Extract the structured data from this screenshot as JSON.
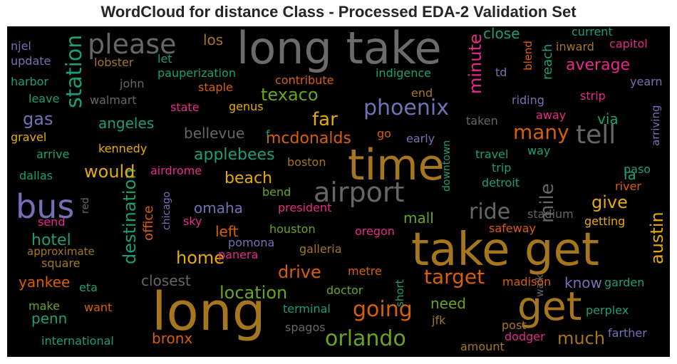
{
  "chart_data": {
    "type": "wordcloud",
    "title": "WordCloud for distance Class - Processed EDA-2 Validation Set",
    "background": "#000000",
    "words": [
      {
        "text": "long take",
        "color": "#6b6b6b"
      },
      {
        "text": "time",
        "color": "#a6761d"
      },
      {
        "text": "take get",
        "color": "#a6761d"
      },
      {
        "text": "long",
        "color": "#a6761d"
      },
      {
        "text": "get",
        "color": "#a6761d"
      },
      {
        "text": "bus",
        "color": "#7570b3"
      },
      {
        "text": "airport",
        "color": "#666666"
      },
      {
        "text": "station",
        "color": "#1b9e77"
      },
      {
        "text": "please",
        "color": "#666666"
      },
      {
        "text": "phoenix",
        "color": "#7570b3"
      },
      {
        "text": "destination",
        "color": "#1b9e77"
      },
      {
        "text": "minute",
        "color": "#e7298a"
      },
      {
        "text": "mile",
        "color": "#666666"
      },
      {
        "text": "tell",
        "color": "#666666"
      },
      {
        "text": "many",
        "color": "#d95f02"
      },
      {
        "text": "ride",
        "color": "#666666"
      },
      {
        "text": "orlando",
        "color": "#66a61e"
      },
      {
        "text": "going",
        "color": "#d95f02"
      },
      {
        "text": "target",
        "color": "#d95f02"
      },
      {
        "text": "austin",
        "color": "#e6ab02"
      },
      {
        "text": "reach",
        "color": "#1b9e77"
      },
      {
        "text": "average",
        "color": "#e7298a"
      },
      {
        "text": "far",
        "color": "#e6ab02"
      },
      {
        "text": "texaco",
        "color": "#66a61e"
      },
      {
        "text": "mcdonalds",
        "color": "#d95f02"
      },
      {
        "text": "would",
        "color": "#e6ab02"
      },
      {
        "text": "applebees",
        "color": "#1b9e77"
      },
      {
        "text": "angeles",
        "color": "#1b9e77"
      },
      {
        "text": "gas",
        "color": "#7570b3"
      },
      {
        "text": "bellevue",
        "color": "#666666"
      },
      {
        "text": "beach",
        "color": "#e6ab02"
      },
      {
        "text": "give",
        "color": "#e6ab02"
      },
      {
        "text": "home",
        "color": "#e6ab02"
      },
      {
        "text": "drive",
        "color": "#d95f02"
      },
      {
        "text": "location",
        "color": "#66a61e"
      },
      {
        "text": "much",
        "color": "#a6761d"
      },
      {
        "text": "hotel",
        "color": "#1b9e77"
      },
      {
        "text": "office",
        "color": "#d95f02"
      },
      {
        "text": "omaha",
        "color": "#7570b3"
      },
      {
        "text": "left",
        "color": "#d95f02"
      },
      {
        "text": "mall",
        "color": "#66a61e"
      },
      {
        "text": "closest",
        "color": "#666666"
      },
      {
        "text": "need",
        "color": "#66a61e"
      },
      {
        "text": "yankee",
        "color": "#d95f02"
      },
      {
        "text": "penn",
        "color": "#1b9e77"
      },
      {
        "text": "bronx",
        "color": "#d95f02"
      },
      {
        "text": "know",
        "color": "#7570b3"
      },
      {
        "text": "los",
        "color": "#a6761d"
      },
      {
        "text": "close",
        "color": "#1b9e77"
      },
      {
        "text": "via",
        "color": "#1b9e77"
      },
      {
        "text": "la",
        "color": "#1b9e77"
      },
      {
        "text": "current",
        "color": "#1b9e77"
      },
      {
        "text": "capitol",
        "color": "#e7298a"
      },
      {
        "text": "inward",
        "color": "#a6761d"
      },
      {
        "text": "yearn",
        "color": "#7570b3"
      },
      {
        "text": "strip",
        "color": "#e7298a"
      },
      {
        "text": "riding",
        "color": "#7570b3"
      },
      {
        "text": "blend",
        "color": "#d95f02"
      },
      {
        "text": "td",
        "color": "#7570b3"
      },
      {
        "text": "away",
        "color": "#e7298a"
      },
      {
        "text": "arriving",
        "color": "#7570b3"
      },
      {
        "text": "taken",
        "color": "#666666"
      },
      {
        "text": "indigence",
        "color": "#1b9e77"
      },
      {
        "text": "contribute",
        "color": "#d95f02"
      },
      {
        "text": "end",
        "color": "#a6761d"
      },
      {
        "text": "pauperization",
        "color": "#1b9e77"
      },
      {
        "text": "staple",
        "color": "#d95f02"
      },
      {
        "text": "lobster",
        "color": "#a6761d"
      },
      {
        "text": "let",
        "color": "#1b9e77"
      },
      {
        "text": "john",
        "color": "#666666"
      },
      {
        "text": "walmart",
        "color": "#666666"
      },
      {
        "text": "state",
        "color": "#e7298a"
      },
      {
        "text": "genus",
        "color": "#e6ab02"
      },
      {
        "text": "njel",
        "color": "#7570b3"
      },
      {
        "text": "update",
        "color": "#7570b3"
      },
      {
        "text": "harbor",
        "color": "#1b9e77"
      },
      {
        "text": "leave",
        "color": "#1b9e77"
      },
      {
        "text": "gravel",
        "color": "#e6ab02"
      },
      {
        "text": "arrive",
        "color": "#1b9e77"
      },
      {
        "text": "kennedy",
        "color": "#e6ab02"
      },
      {
        "text": "dallas",
        "color": "#1b9e77"
      },
      {
        "text": "f",
        "color": "#1b9e77"
      },
      {
        "text": "go",
        "color": "#d95f02"
      },
      {
        "text": "early",
        "color": "#7570b3"
      },
      {
        "text": "boston",
        "color": "#a6761d"
      },
      {
        "text": "downtown",
        "color": "#1b9e77"
      },
      {
        "text": "travel",
        "color": "#1b9e77"
      },
      {
        "text": "way",
        "color": "#1b9e77"
      },
      {
        "text": "trip",
        "color": "#1b9e77"
      },
      {
        "text": "paso",
        "color": "#1b9e77"
      },
      {
        "text": "detroit",
        "color": "#1b9e77"
      },
      {
        "text": "river",
        "color": "#d95f02"
      },
      {
        "text": "airdrome",
        "color": "#e7298a"
      },
      {
        "text": "red",
        "color": "#666666"
      },
      {
        "text": "chicago",
        "color": "#7570b3"
      },
      {
        "text": "bend",
        "color": "#66a61e"
      },
      {
        "text": "president",
        "color": "#e7298a"
      },
      {
        "text": "stadium",
        "color": "#666666"
      },
      {
        "text": "send",
        "color": "#e7298a"
      },
      {
        "text": "sky",
        "color": "#e7298a"
      },
      {
        "text": "houston",
        "color": "#66a61e"
      },
      {
        "text": "oregon",
        "color": "#e7298a"
      },
      {
        "text": "safeway",
        "color": "#d95f02"
      },
      {
        "text": "getting",
        "color": "#e6ab02"
      },
      {
        "text": "approximate",
        "color": "#a6761d"
      },
      {
        "text": "pomona",
        "color": "#7570b3"
      },
      {
        "text": "panera",
        "color": "#e7298a"
      },
      {
        "text": "galleria",
        "color": "#a6761d"
      },
      {
        "text": "square",
        "color": "#a6761d"
      },
      {
        "text": "short",
        "color": "#1b9e77"
      },
      {
        "text": "walk",
        "color": "#666666"
      },
      {
        "text": "metre",
        "color": "#d95f02"
      },
      {
        "text": "eta",
        "color": "#1b9e77"
      },
      {
        "text": "madison",
        "color": "#d95f02"
      },
      {
        "text": "garden",
        "color": "#1b9e77"
      },
      {
        "text": "doctor",
        "color": "#66a61e"
      },
      {
        "text": "make",
        "color": "#66a61e"
      },
      {
        "text": "want",
        "color": "#d95f02"
      },
      {
        "text": "terminal",
        "color": "#1b9e77"
      },
      {
        "text": "perplex",
        "color": "#1b9e77"
      },
      {
        "text": "jfk",
        "color": "#a6761d"
      },
      {
        "text": "post",
        "color": "#a6761d"
      },
      {
        "text": "spagos",
        "color": "#666666"
      },
      {
        "text": "dodger",
        "color": "#e7298a"
      },
      {
        "text": "farther",
        "color": "#7570b3"
      },
      {
        "text": "international",
        "color": "#1b9e77"
      },
      {
        "text": "amount",
        "color": "#a6761d"
      }
    ]
  }
}
